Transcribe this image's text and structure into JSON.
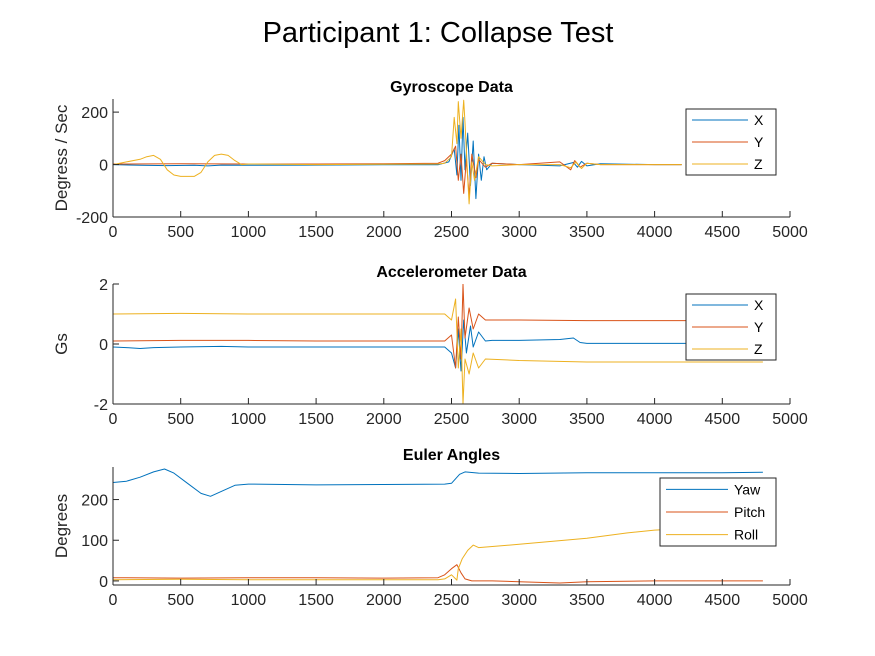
{
  "figure": {
    "title": "Participant 1: Collapse Test"
  },
  "chart_data": [
    {
      "type": "line",
      "title": "Gyroscope Data",
      "xlabel": "",
      "ylabel": "Degress / Sec",
      "xlim": [
        0,
        5000
      ],
      "ylim": [
        -200,
        250
      ],
      "xticks": [
        0,
        500,
        1000,
        1500,
        2000,
        2500,
        3000,
        3500,
        4000,
        4500,
        5000
      ],
      "yticks": [
        -200,
        0,
        200
      ],
      "grid": false,
      "legend_position": "top-right",
      "series": [
        {
          "name": "X",
          "color": "#0072BD",
          "points": [
            [
              0,
              0
            ],
            [
              200,
              -3
            ],
            [
              400,
              -4
            ],
            [
              600,
              -3
            ],
            [
              700,
              -5
            ],
            [
              800,
              -2
            ],
            [
              1000,
              -3
            ],
            [
              1500,
              -2
            ],
            [
              2000,
              -1
            ],
            [
              2400,
              -1
            ],
            [
              2480,
              10
            ],
            [
              2520,
              60
            ],
            [
              2540,
              -40
            ],
            [
              2555,
              150
            ],
            [
              2570,
              -60
            ],
            [
              2585,
              180
            ],
            [
              2600,
              -20
            ],
            [
              2620,
              120
            ],
            [
              2640,
              -80
            ],
            [
              2660,
              90
            ],
            [
              2680,
              -130
            ],
            [
              2700,
              40
            ],
            [
              2720,
              -60
            ],
            [
              2740,
              30
            ],
            [
              2760,
              -20
            ],
            [
              2800,
              5
            ],
            [
              3000,
              0
            ],
            [
              3300,
              -5
            ],
            [
              3400,
              8
            ],
            [
              3430,
              -10
            ],
            [
              3460,
              12
            ],
            [
              3500,
              -5
            ],
            [
              3600,
              3
            ],
            [
              4000,
              0
            ],
            [
              4200,
              0
            ]
          ]
        },
        {
          "name": "Y",
          "color": "#D95319",
          "points": [
            [
              0,
              2
            ],
            [
              500,
              3
            ],
            [
              1000,
              2
            ],
            [
              1500,
              2
            ],
            [
              2000,
              3
            ],
            [
              2400,
              5
            ],
            [
              2450,
              15
            ],
            [
              2500,
              40
            ],
            [
              2530,
              70
            ],
            [
              2550,
              -60
            ],
            [
              2570,
              40
            ],
            [
              2590,
              -110
            ],
            [
              2610,
              20
            ],
            [
              2630,
              -120
            ],
            [
              2650,
              40
            ],
            [
              2680,
              -50
            ],
            [
              2700,
              20
            ],
            [
              2750,
              -10
            ],
            [
              2800,
              5
            ],
            [
              3000,
              0
            ],
            [
              3300,
              10
            ],
            [
              3380,
              -20
            ],
            [
              3410,
              15
            ],
            [
              3450,
              -10
            ],
            [
              3500,
              5
            ],
            [
              3600,
              0
            ],
            [
              4000,
              0
            ],
            [
              4200,
              0
            ]
          ]
        },
        {
          "name": "Z",
          "color": "#EDB120",
          "points": [
            [
              0,
              0
            ],
            [
              100,
              10
            ],
            [
              200,
              20
            ],
            [
              250,
              30
            ],
            [
              300,
              35
            ],
            [
              350,
              20
            ],
            [
              400,
              -20
            ],
            [
              450,
              -40
            ],
            [
              500,
              -45
            ],
            [
              600,
              -45
            ],
            [
              650,
              -30
            ],
            [
              700,
              10
            ],
            [
              750,
              35
            ],
            [
              800,
              40
            ],
            [
              850,
              35
            ],
            [
              900,
              15
            ],
            [
              950,
              0
            ],
            [
              1000,
              2
            ],
            [
              1500,
              0
            ],
            [
              2000,
              1
            ],
            [
              2400,
              2
            ],
            [
              2450,
              5
            ],
            [
              2500,
              30
            ],
            [
              2520,
              180
            ],
            [
              2540,
              80
            ],
            [
              2550,
              240
            ],
            [
              2570,
              100
            ],
            [
              2590,
              245
            ],
            [
              2600,
              160
            ],
            [
              2620,
              -50
            ],
            [
              2630,
              -150
            ],
            [
              2650,
              10
            ],
            [
              2670,
              -60
            ],
            [
              2700,
              30
            ],
            [
              2750,
              0
            ],
            [
              2800,
              -5
            ],
            [
              3000,
              0
            ],
            [
              3300,
              0
            ],
            [
              3380,
              -12
            ],
            [
              3420,
              10
            ],
            [
              3460,
              -15
            ],
            [
              3500,
              5
            ],
            [
              3600,
              0
            ],
            [
              4000,
              0
            ],
            [
              4200,
              0
            ]
          ]
        }
      ]
    },
    {
      "type": "line",
      "title": "Accelerometer Data",
      "xlabel": "",
      "ylabel": "Gs",
      "xlim": [
        0,
        5000
      ],
      "ylim": [
        -2,
        2
      ],
      "xticks": [
        0,
        500,
        1000,
        1500,
        2000,
        2500,
        3000,
        3500,
        4000,
        4500,
        5000
      ],
      "yticks": [
        -2,
        0,
        2
      ],
      "grid": false,
      "legend_position": "top-right",
      "series": [
        {
          "name": "X",
          "color": "#0072BD",
          "points": [
            [
              0,
              -0.1
            ],
            [
              100,
              -0.12
            ],
            [
              200,
              -0.15
            ],
            [
              300,
              -0.12
            ],
            [
              500,
              -0.1
            ],
            [
              800,
              -0.08
            ],
            [
              1000,
              -0.1
            ],
            [
              1500,
              -0.1
            ],
            [
              2000,
              -0.1
            ],
            [
              2450,
              -0.1
            ],
            [
              2500,
              -0.3
            ],
            [
              2530,
              -0.8
            ],
            [
              2550,
              0.5
            ],
            [
              2570,
              -0.9
            ],
            [
              2590,
              0.8
            ],
            [
              2610,
              -0.3
            ],
            [
              2640,
              0.6
            ],
            [
              2660,
              -0.1
            ],
            [
              2700,
              0.4
            ],
            [
              2750,
              0.1
            ],
            [
              2800,
              0.12
            ],
            [
              3000,
              0.12
            ],
            [
              3300,
              0.15
            ],
            [
              3400,
              0.2
            ],
            [
              3450,
              0.05
            ],
            [
              3500,
              0.02
            ],
            [
              4000,
              0.02
            ],
            [
              4500,
              0.02
            ],
            [
              4800,
              0.02
            ]
          ]
        },
        {
          "name": "Y",
          "color": "#D95319",
          "points": [
            [
              0,
              0.1
            ],
            [
              500,
              0.12
            ],
            [
              1000,
              0.12
            ],
            [
              1500,
              0.1
            ],
            [
              2000,
              0.1
            ],
            [
              2450,
              0.1
            ],
            [
              2500,
              0.3
            ],
            [
              2530,
              -0.8
            ],
            [
              2550,
              0.9
            ],
            [
              2570,
              -0.5
            ],
            [
              2585,
              2.0
            ],
            [
              2600,
              0.2
            ],
            [
              2630,
              1.2
            ],
            [
              2660,
              0.5
            ],
            [
              2700,
              1.0
            ],
            [
              2750,
              0.8
            ],
            [
              3000,
              0.8
            ],
            [
              3500,
              0.78
            ],
            [
              4000,
              0.78
            ],
            [
              4800,
              0.78
            ]
          ]
        },
        {
          "name": "Z",
          "color": "#EDB120",
          "points": [
            [
              0,
              1.0
            ],
            [
              500,
              1.02
            ],
            [
              1000,
              1.0
            ],
            [
              1500,
              1.0
            ],
            [
              2000,
              1.0
            ],
            [
              2450,
              1.0
            ],
            [
              2500,
              0.8
            ],
            [
              2530,
              1.5
            ],
            [
              2550,
              -0.8
            ],
            [
              2570,
              0.5
            ],
            [
              2585,
              -2.0
            ],
            [
              2600,
              -0.5
            ],
            [
              2630,
              -1.0
            ],
            [
              2660,
              -0.3
            ],
            [
              2700,
              -0.8
            ],
            [
              2750,
              -0.5
            ],
            [
              3000,
              -0.55
            ],
            [
              3500,
              -0.6
            ],
            [
              4000,
              -0.6
            ],
            [
              4800,
              -0.6
            ]
          ]
        }
      ]
    },
    {
      "type": "line",
      "title": "Euler Angles",
      "xlabel": "",
      "ylabel": "Degrees",
      "xlim": [
        0,
        5000
      ],
      "ylim": [
        -10,
        280
      ],
      "xticks": [
        0,
        500,
        1000,
        1500,
        2000,
        2500,
        3000,
        3500,
        4000,
        4500,
        5000
      ],
      "yticks": [
        0,
        100,
        200
      ],
      "grid": false,
      "legend_position": "top-right",
      "series": [
        {
          "name": "Yaw",
          "color": "#0072BD",
          "points": [
            [
              0,
              242
            ],
            [
              100,
              245
            ],
            [
              200,
              255
            ],
            [
              300,
              268
            ],
            [
              380,
              275
            ],
            [
              450,
              265
            ],
            [
              550,
              240
            ],
            [
              650,
              215
            ],
            [
              720,
              208
            ],
            [
              800,
              220
            ],
            [
              900,
              235
            ],
            [
              1000,
              238
            ],
            [
              1500,
              236
            ],
            [
              2000,
              237
            ],
            [
              2450,
              238
            ],
            [
              2500,
              240
            ],
            [
              2560,
              262
            ],
            [
              2600,
              268
            ],
            [
              2700,
              265
            ],
            [
              3000,
              264
            ],
            [
              3500,
              266
            ],
            [
              4000,
              266
            ],
            [
              4500,
              266
            ],
            [
              4800,
              267
            ]
          ]
        },
        {
          "name": "Pitch",
          "color": "#D95319",
          "points": [
            [
              0,
              8
            ],
            [
              500,
              7
            ],
            [
              1000,
              8
            ],
            [
              1500,
              8
            ],
            [
              2000,
              7
            ],
            [
              2400,
              8
            ],
            [
              2450,
              15
            ],
            [
              2500,
              30
            ],
            [
              2540,
              40
            ],
            [
              2570,
              20
            ],
            [
              2600,
              5
            ],
            [
              2650,
              0
            ],
            [
              2800,
              0
            ],
            [
              3000,
              -2
            ],
            [
              3300,
              -5
            ],
            [
              3500,
              -2
            ],
            [
              4000,
              0
            ],
            [
              4500,
              0
            ],
            [
              4800,
              0
            ]
          ]
        },
        {
          "name": "Roll",
          "color": "#EDB120",
          "points": [
            [
              0,
              3
            ],
            [
              500,
              4
            ],
            [
              1000,
              3
            ],
            [
              1500,
              3
            ],
            [
              2000,
              3
            ],
            [
              2400,
              3
            ],
            [
              2450,
              5
            ],
            [
              2500,
              15
            ],
            [
              2540,
              2
            ],
            [
              2550,
              30
            ],
            [
              2580,
              55
            ],
            [
              2620,
              75
            ],
            [
              2660,
              88
            ],
            [
              2700,
              82
            ],
            [
              3000,
              90
            ],
            [
              3500,
              105
            ],
            [
              3800,
              118
            ],
            [
              4000,
              125
            ],
            [
              4200,
              128
            ],
            [
              4500,
              130
            ],
            [
              4800,
              130
            ]
          ]
        }
      ]
    }
  ]
}
